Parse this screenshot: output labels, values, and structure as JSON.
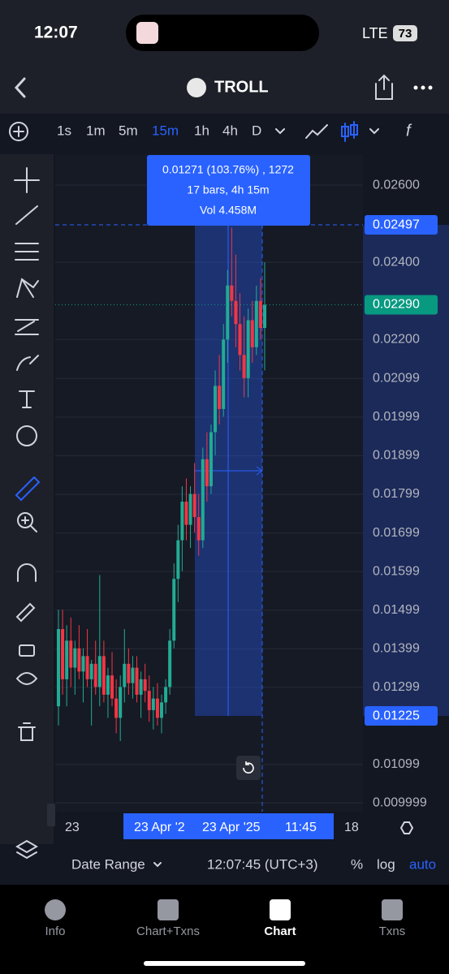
{
  "status_bar": {
    "time": "12:07",
    "network": "LTE",
    "battery": "73"
  },
  "header": {
    "title": "TROLL"
  },
  "toolbar": {
    "intervals": [
      "1s",
      "1m",
      "5m",
      "15m",
      "1h",
      "4h",
      "D"
    ],
    "active": 3
  },
  "chart_data": {
    "type": "candlestick",
    "ylim": [
      0.00977,
      0.0268
    ],
    "yticks": [
      {
        "value": 0.026,
        "label": "0.02600"
      },
      {
        "value": 0.024,
        "label": "0.02400"
      },
      {
        "value": 0.022,
        "label": "0.02200"
      },
      0.02099,
      0.01999,
      0.01899,
      0.01799,
      0.01699,
      0.01599,
      0.01499,
      0.01399,
      0.01299,
      0.01099,
      0.009999
    ],
    "grid": true,
    "up_color": "#22ab94",
    "down_color": "#f23645",
    "ohlc": [
      [
        0.0125,
        0.015,
        0.012,
        0.0145
      ],
      [
        0.0145,
        0.015,
        0.0128,
        0.0132
      ],
      [
        0.0132,
        0.0146,
        0.0125,
        0.0142
      ],
      [
        0.0142,
        0.0148,
        0.013,
        0.0135
      ],
      [
        0.0135,
        0.0142,
        0.0128,
        0.014
      ],
      [
        0.014,
        0.0146,
        0.0132,
        0.0134
      ],
      [
        0.0134,
        0.014,
        0.0126,
        0.0138
      ],
      [
        0.0138,
        0.0145,
        0.013,
        0.0132
      ],
      [
        0.0132,
        0.0137,
        0.012,
        0.0136
      ],
      [
        0.0136,
        0.0142,
        0.0128,
        0.013
      ],
      [
        0.013,
        0.0159,
        0.0125,
        0.0138
      ],
      [
        0.0138,
        0.0142,
        0.0126,
        0.0128
      ],
      [
        0.0128,
        0.0135,
        0.0122,
        0.0133
      ],
      [
        0.0133,
        0.0139,
        0.0125,
        0.0127
      ],
      [
        0.0127,
        0.0132,
        0.0118,
        0.0122
      ],
      [
        0.0122,
        0.0133,
        0.0116,
        0.013
      ],
      [
        0.013,
        0.0145,
        0.0126,
        0.0136
      ],
      [
        0.0136,
        0.014,
        0.0128,
        0.0131
      ],
      [
        0.0131,
        0.0138,
        0.0127,
        0.0135
      ],
      [
        0.0135,
        0.0138,
        0.0126,
        0.0128
      ],
      [
        0.0128,
        0.0134,
        0.0122,
        0.0132
      ],
      [
        0.0132,
        0.0136,
        0.0126,
        0.0129
      ],
      [
        0.0129,
        0.0133,
        0.0121,
        0.0124
      ],
      [
        0.0124,
        0.013,
        0.0119,
        0.0127
      ],
      [
        0.0127,
        0.0131,
        0.012,
        0.0122
      ],
      [
        0.0122,
        0.0128,
        0.0118,
        0.0126
      ],
      [
        0.0126,
        0.0132,
        0.0123,
        0.013
      ],
      [
        0.013,
        0.0145,
        0.0128,
        0.0142
      ],
      [
        0.0142,
        0.0162,
        0.014,
        0.0158
      ],
      [
        0.0158,
        0.0172,
        0.0152,
        0.0168
      ],
      [
        0.0168,
        0.0182,
        0.016,
        0.0178
      ],
      [
        0.0178,
        0.0184,
        0.0168,
        0.0172
      ],
      [
        0.0172,
        0.0182,
        0.0166,
        0.018
      ],
      [
        0.018,
        0.0188,
        0.017,
        0.0174
      ],
      [
        0.0174,
        0.018,
        0.0164,
        0.0168
      ],
      [
        0.0168,
        0.0192,
        0.0166,
        0.0189
      ],
      [
        0.0189,
        0.0196,
        0.0178,
        0.0182
      ],
      [
        0.0182,
        0.0198,
        0.018,
        0.0196
      ],
      [
        0.0196,
        0.0212,
        0.019,
        0.0208
      ],
      [
        0.0208,
        0.0216,
        0.0198,
        0.0202
      ],
      [
        0.0202,
        0.0224,
        0.02,
        0.022
      ],
      [
        0.022,
        0.0238,
        0.0214,
        0.0234
      ],
      [
        0.0234,
        0.0249,
        0.0226,
        0.023
      ],
      [
        0.023,
        0.0242,
        0.0218,
        0.0224
      ],
      [
        0.0224,
        0.0232,
        0.0212,
        0.0216
      ],
      [
        0.0216,
        0.0226,
        0.0205,
        0.021
      ],
      [
        0.021,
        0.0228,
        0.0205,
        0.0225
      ],
      [
        0.0225,
        0.023,
        0.0214,
        0.0218
      ],
      [
        0.0218,
        0.0234,
        0.0216,
        0.023
      ],
      [
        0.023,
        0.0236,
        0.022,
        0.0223
      ],
      [
        0.0223,
        0.024,
        0.0212,
        0.0229
      ]
    ],
    "price_labels": [
      {
        "value": 0.02497,
        "color": "#2962ff"
      },
      {
        "value": 0.0229,
        "label": "0.02290",
        "color": "#089981"
      },
      {
        "value": 0.01225,
        "color": "#2962ff"
      }
    ],
    "measure": {
      "lines": [
        "0.01271 (103.76%) , 1272",
        "17 bars, 4h 15m",
        "Vol 4.458M"
      ]
    },
    "x_labels": [
      "23",
      "23 Apr '2",
      "23 Apr '25",
      "11:45",
      "18"
    ]
  },
  "bottom_bar": {
    "date_range": "Date Range",
    "time": "12:07:45 (UTC+3)",
    "percent": "%",
    "log": "log",
    "auto": "auto"
  },
  "tabs": [
    {
      "label": "Info"
    },
    {
      "label": "Chart+Txns"
    },
    {
      "label": "Chart"
    },
    {
      "label": "Txns"
    }
  ],
  "active_tab": 2
}
